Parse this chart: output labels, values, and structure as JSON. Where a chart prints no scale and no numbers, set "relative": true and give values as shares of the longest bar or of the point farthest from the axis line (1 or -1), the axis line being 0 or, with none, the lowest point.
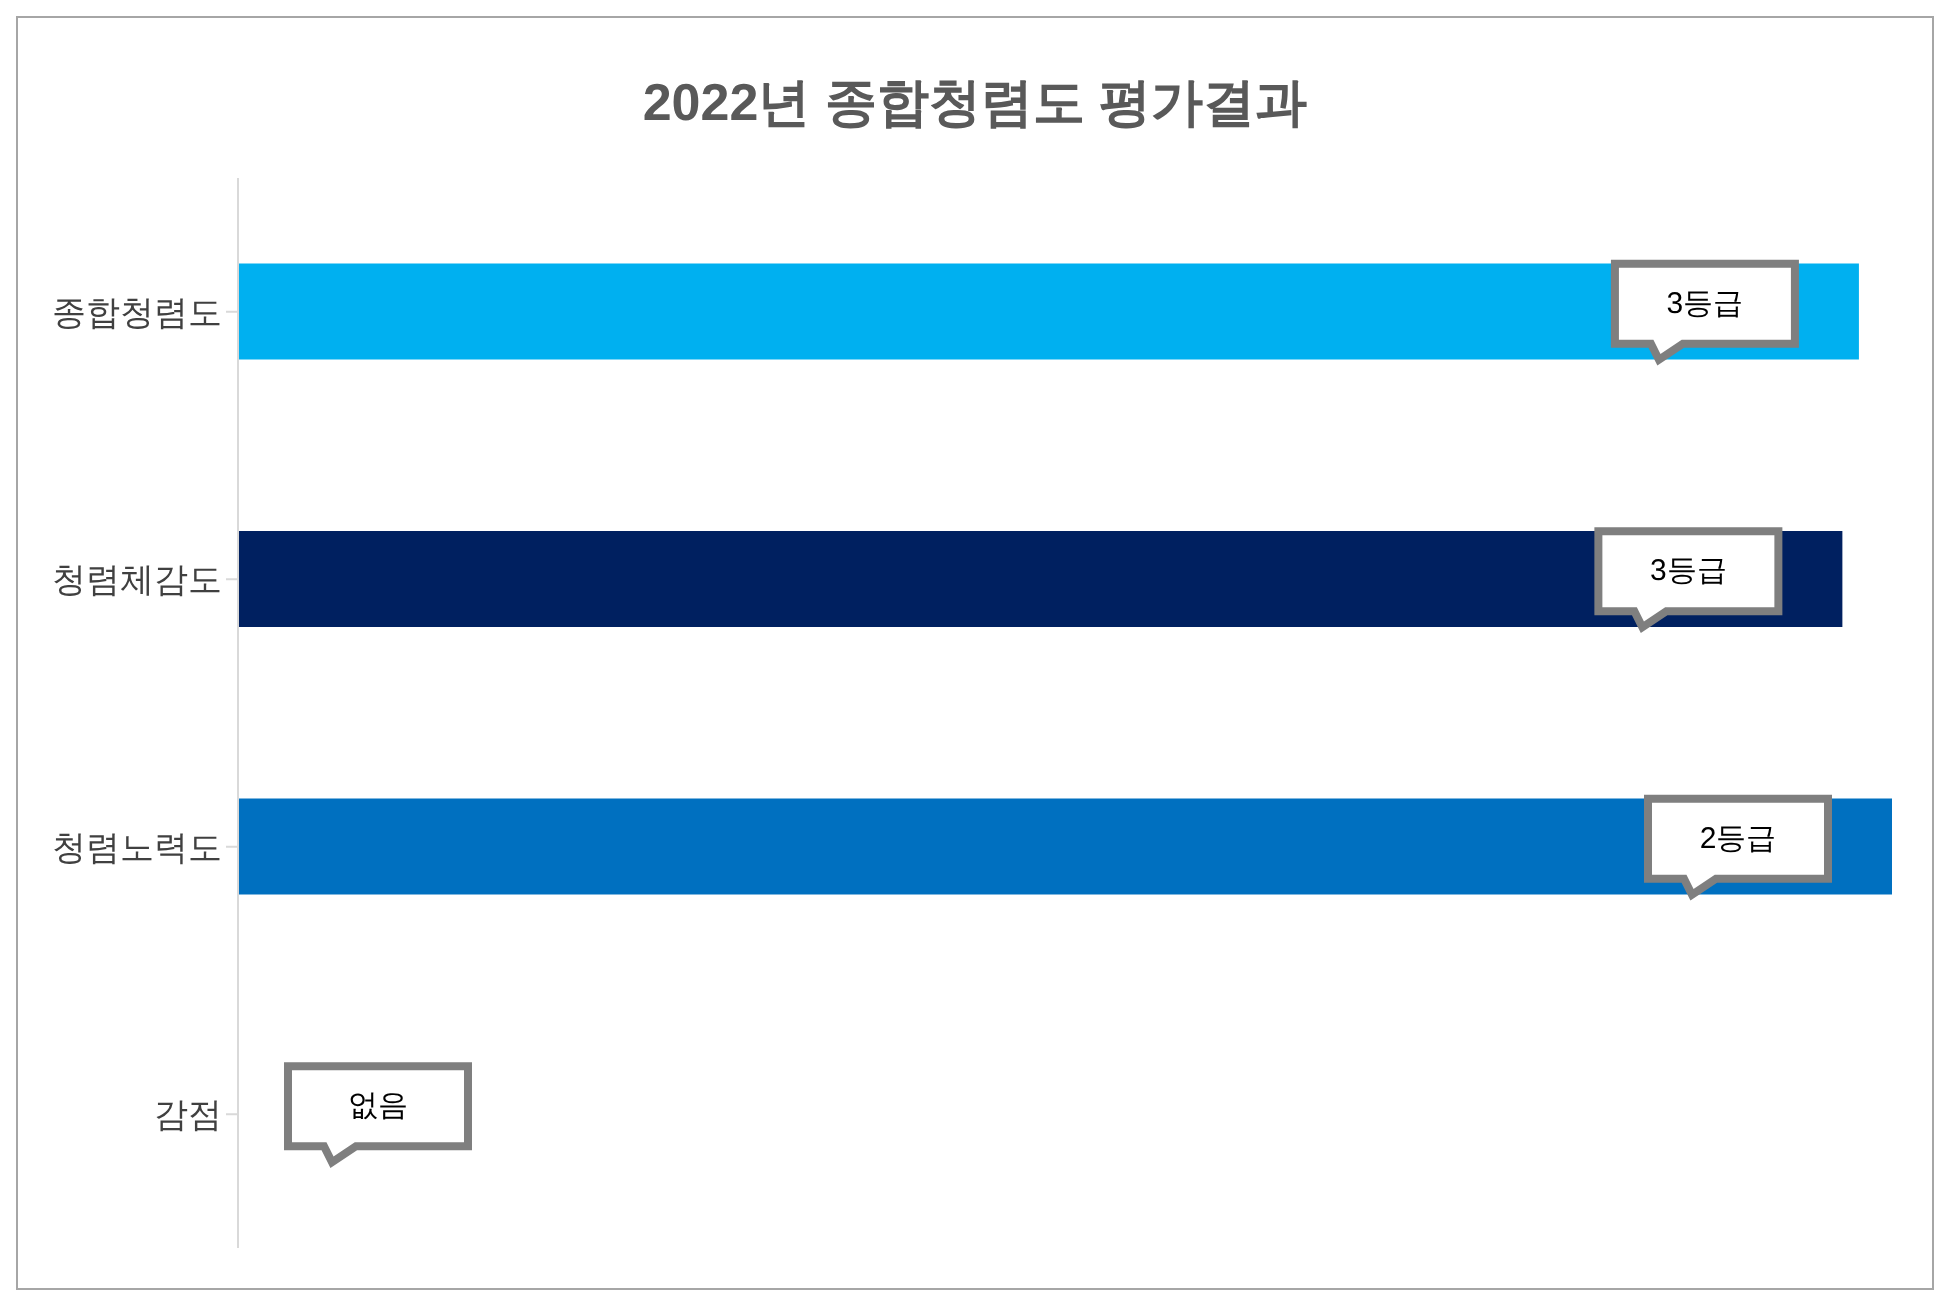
{
  "chart_data": {
    "type": "bar",
    "orientation": "horizontal",
    "relative": true,
    "title": "2022년 종합청렴도 평가결과",
    "categories": [
      "종합청렴도",
      "청렴체감도",
      "청렴노력도",
      "감점"
    ],
    "values": [
      0.98,
      0.97,
      1,
      0
    ],
    "colors": [
      "#00b0f0",
      "#002060",
      "#0070c0",
      "#0070c0"
    ],
    "annotations": [
      "3등급",
      "3등급",
      "2등급",
      "없음"
    ]
  }
}
